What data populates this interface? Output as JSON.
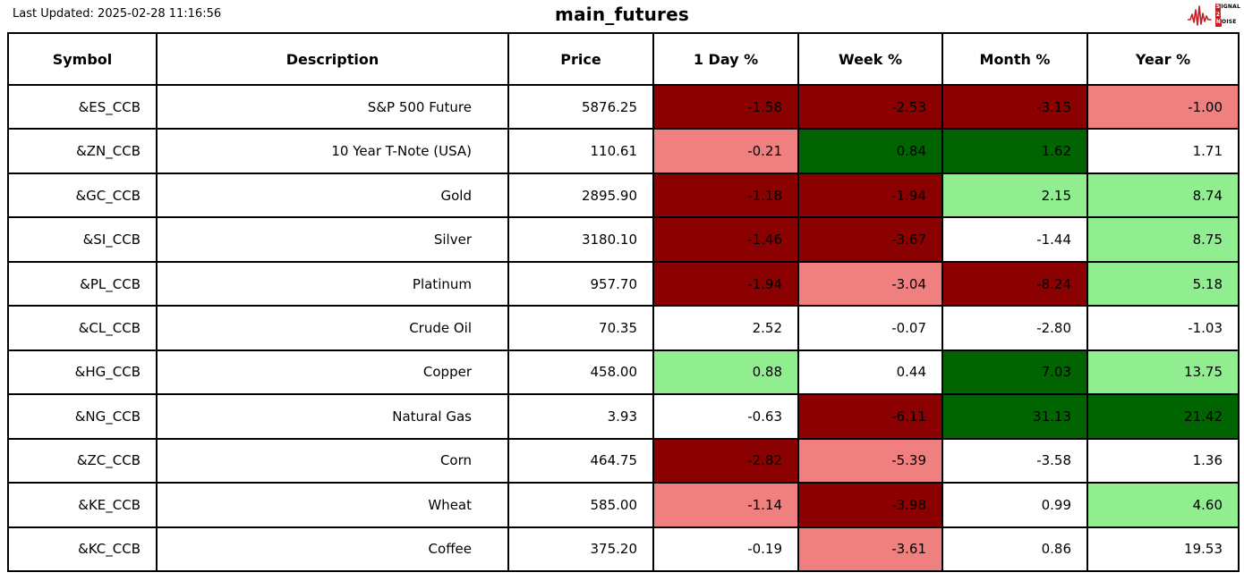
{
  "header": {
    "last_updated": "Last Updated: 2025-02-28 11:16:56"
  },
  "logo": {
    "accent_color": "#C41E25",
    "line1_initial": "S",
    "line1_rest": "IGNAL",
    "line2_initial": "2",
    "line3_initial": "N",
    "line3_rest": "OISE"
  },
  "chart_data": {
    "type": "table",
    "title": "main_futures",
    "columns": [
      "Symbol",
      "Description",
      "Price",
      "1 Day %",
      "Week %",
      "Month %",
      "Year %"
    ],
    "tone_colors": {
      "neg_strong": "#8B0000",
      "neg_mild": "#F08080",
      "pos_strong": "#006400",
      "pos_mild": "#90EE90",
      "neutral": "#FFFFFF"
    },
    "rows": [
      {
        "symbol": "&ES_CCB",
        "description": "S&P 500 Future",
        "price": "5876.25",
        "changes": [
          {
            "value": "-1.58",
            "tone": "neg_strong"
          },
          {
            "value": "-2.53",
            "tone": "neg_strong"
          },
          {
            "value": "-3.15",
            "tone": "neg_strong"
          },
          {
            "value": "-1.00",
            "tone": "neg_mild"
          }
        ]
      },
      {
        "symbol": "&ZN_CCB",
        "description": "10 Year T-Note (USA)",
        "price": "110.61",
        "changes": [
          {
            "value": "-0.21",
            "tone": "neg_mild"
          },
          {
            "value": "0.84",
            "tone": "pos_strong"
          },
          {
            "value": "1.62",
            "tone": "pos_strong"
          },
          {
            "value": "1.71",
            "tone": "neutral"
          }
        ]
      },
      {
        "symbol": "&GC_CCB",
        "description": "Gold",
        "price": "2895.90",
        "changes": [
          {
            "value": "-1.18",
            "tone": "neg_strong"
          },
          {
            "value": "-1.94",
            "tone": "neg_strong"
          },
          {
            "value": "2.15",
            "tone": "pos_mild"
          },
          {
            "value": "8.74",
            "tone": "pos_mild"
          }
        ]
      },
      {
        "symbol": "&SI_CCB",
        "description": "Silver",
        "price": "3180.10",
        "changes": [
          {
            "value": "-1.46",
            "tone": "neg_strong"
          },
          {
            "value": "-3.67",
            "tone": "neg_strong"
          },
          {
            "value": "-1.44",
            "tone": "neutral"
          },
          {
            "value": "8.75",
            "tone": "pos_mild"
          }
        ]
      },
      {
        "symbol": "&PL_CCB",
        "description": "Platinum",
        "price": "957.70",
        "changes": [
          {
            "value": "-1.94",
            "tone": "neg_strong"
          },
          {
            "value": "-3.04",
            "tone": "neg_mild"
          },
          {
            "value": "-8.24",
            "tone": "neg_strong"
          },
          {
            "value": "5.18",
            "tone": "pos_mild"
          }
        ]
      },
      {
        "symbol": "&CL_CCB",
        "description": "Crude Oil",
        "price": "70.35",
        "changes": [
          {
            "value": "2.52",
            "tone": "neutral"
          },
          {
            "value": "-0.07",
            "tone": "neutral"
          },
          {
            "value": "-2.80",
            "tone": "neutral"
          },
          {
            "value": "-1.03",
            "tone": "neutral"
          }
        ]
      },
      {
        "symbol": "&HG_CCB",
        "description": "Copper",
        "price": "458.00",
        "changes": [
          {
            "value": "0.88",
            "tone": "pos_mild"
          },
          {
            "value": "0.44",
            "tone": "neutral"
          },
          {
            "value": "7.03",
            "tone": "pos_strong"
          },
          {
            "value": "13.75",
            "tone": "pos_mild"
          }
        ]
      },
      {
        "symbol": "&NG_CCB",
        "description": "Natural Gas",
        "price": "3.93",
        "changes": [
          {
            "value": "-0.63",
            "tone": "neutral"
          },
          {
            "value": "-6.11",
            "tone": "neg_strong"
          },
          {
            "value": "31.13",
            "tone": "pos_strong"
          },
          {
            "value": "21.42",
            "tone": "pos_strong"
          }
        ]
      },
      {
        "symbol": "&ZC_CCB",
        "description": "Corn",
        "price": "464.75",
        "changes": [
          {
            "value": "-2.82",
            "tone": "neg_strong"
          },
          {
            "value": "-5.39",
            "tone": "neg_mild"
          },
          {
            "value": "-3.58",
            "tone": "neutral"
          },
          {
            "value": "1.36",
            "tone": "neutral"
          }
        ]
      },
      {
        "symbol": "&KE_CCB",
        "description": "Wheat",
        "price": "585.00",
        "changes": [
          {
            "value": "-1.14",
            "tone": "neg_mild"
          },
          {
            "value": "-3.98",
            "tone": "neg_strong"
          },
          {
            "value": "0.99",
            "tone": "neutral"
          },
          {
            "value": "4.60",
            "tone": "pos_mild"
          }
        ]
      },
      {
        "symbol": "&KC_CCB",
        "description": "Coffee",
        "price": "375.20",
        "changes": [
          {
            "value": "-0.19",
            "tone": "neutral"
          },
          {
            "value": "-3.61",
            "tone": "neg_mild"
          },
          {
            "value": "0.86",
            "tone": "neutral"
          },
          {
            "value": "19.53",
            "tone": "neutral"
          }
        ]
      }
    ]
  }
}
